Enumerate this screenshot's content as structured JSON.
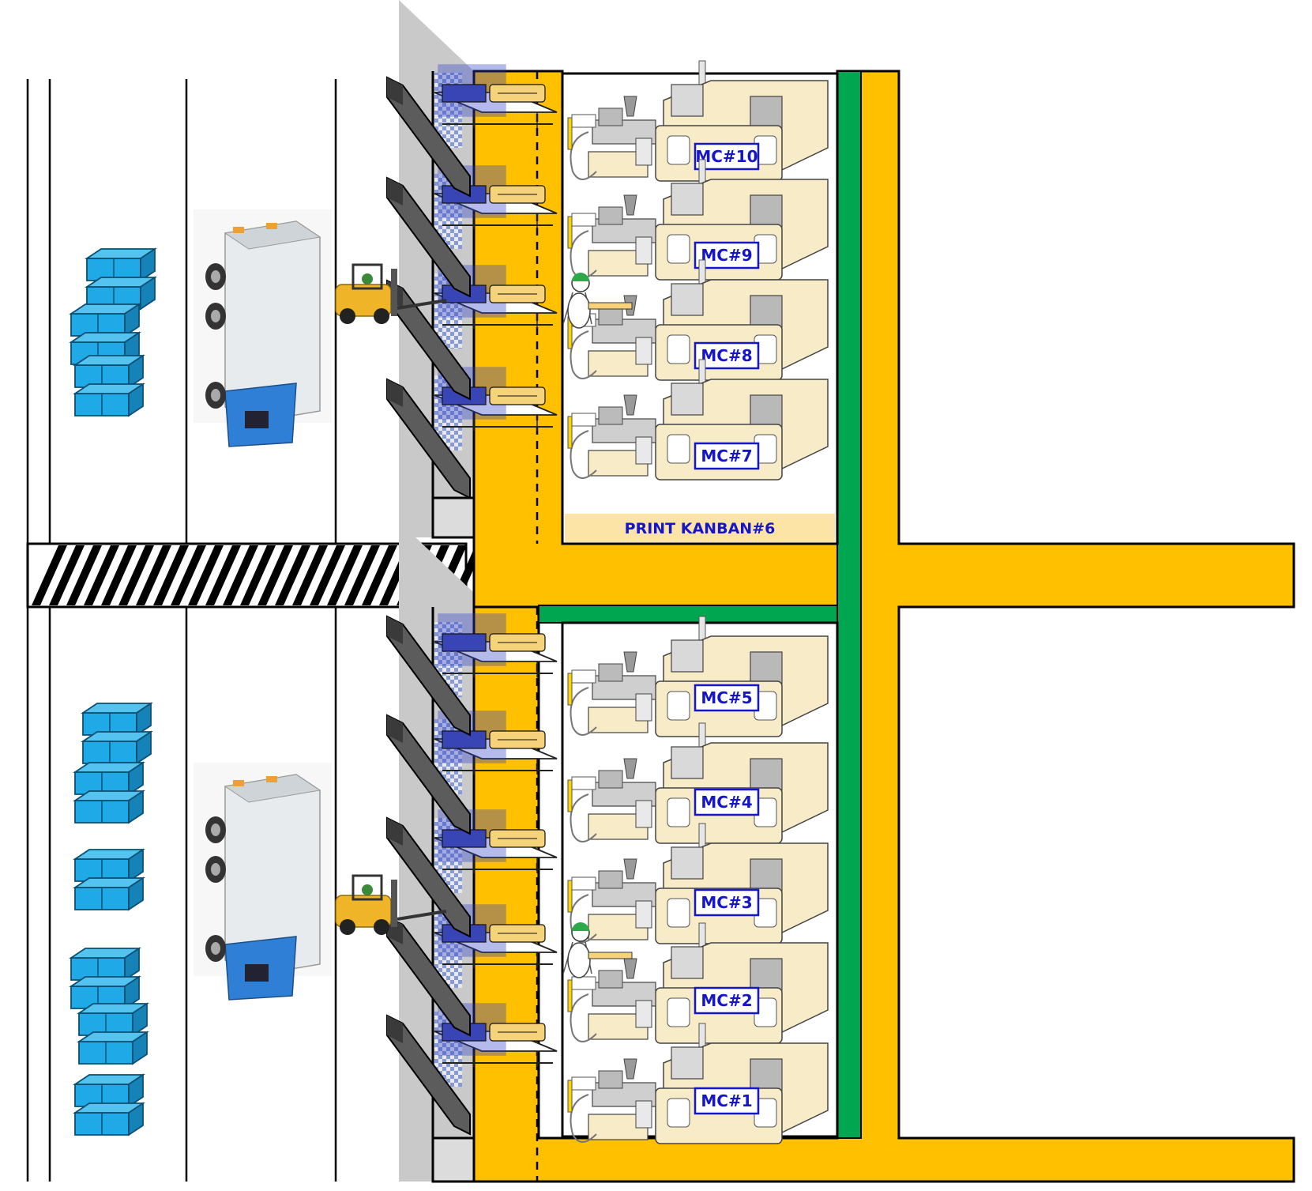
{
  "colors": {
    "aisle": "#FFC000",
    "green_line": "#00A650",
    "box_blue": "#1FA9E6",
    "box_dark": "#0B4F73",
    "machine_cream": "#F8EBC8",
    "machine_grey": "#B9B9B9",
    "label_blue": "#1515C9",
    "dock_grey": "#BDBDBD",
    "rack_blue": "#2B3DC8",
    "truck_body": "#E8EBEE",
    "truck_cab": "#2F7FD6",
    "forklift": "#F0B429"
  },
  "labels": {
    "kanban": "PRINT KANBAN#6",
    "machines": [
      "MC#10",
      "MC#9",
      "MC#8",
      "MC#7",
      "MC#5",
      "MC#4",
      "MC#3",
      "MC#2",
      "MC#1"
    ]
  },
  "icons": [
    "box-stack-icon",
    "truck-icon",
    "forklift-icon",
    "operator-icon",
    "injection-machine-icon",
    "shipping-rack-icon",
    "dock-ramp-icon"
  ]
}
